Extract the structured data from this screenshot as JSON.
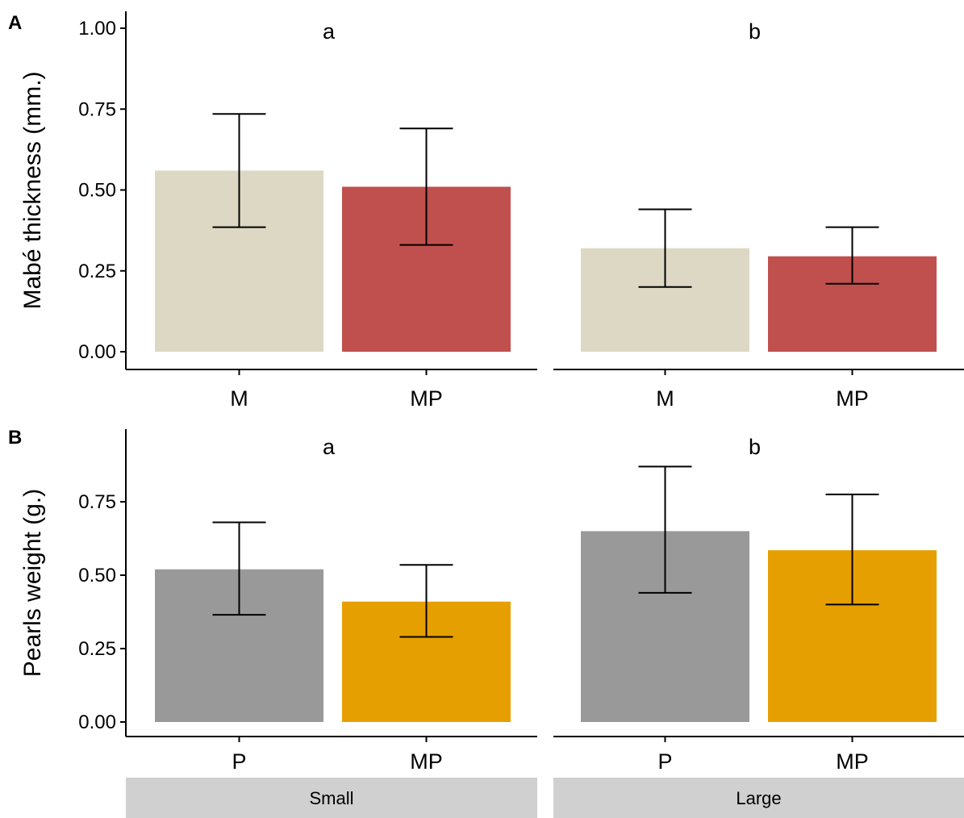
{
  "chart_data": [
    {
      "type": "bar",
      "panel_label": "A",
      "ylabel": "Mabé thickness (mm.)",
      "ylim": [
        0,
        1.0
      ],
      "yticks": [
        "0.00",
        "0.25",
        "0.50",
        "0.75",
        "1.00"
      ],
      "grid": false,
      "facets": [
        {
          "strip": "Small",
          "letter": "a",
          "categories": [
            "M",
            "MP"
          ],
          "values": [
            0.56,
            0.51
          ],
          "err_low": [
            0.385,
            0.33
          ],
          "err_high": [
            0.735,
            0.69
          ],
          "colors": [
            "#ddd8c4",
            "#c0504d"
          ]
        },
        {
          "strip": "Large",
          "letter": "b",
          "categories": [
            "M",
            "MP"
          ],
          "values": [
            0.32,
            0.295
          ],
          "err_low": [
            0.2,
            0.21
          ],
          "err_high": [
            0.44,
            0.385
          ],
          "colors": [
            "#ddd8c4",
            "#c0504d"
          ]
        }
      ]
    },
    {
      "type": "bar",
      "panel_label": "B",
      "ylabel": "Pearls weight (g.)",
      "ylim": [
        0,
        0.95
      ],
      "yticks": [
        "0.00",
        "0.25",
        "0.50",
        "0.75"
      ],
      "grid": false,
      "facets": [
        {
          "strip": "Small",
          "letter": "a",
          "categories": [
            "P",
            "MP"
          ],
          "values": [
            0.52,
            0.41
          ],
          "err_low": [
            0.365,
            0.29
          ],
          "err_high": [
            0.68,
            0.535
          ],
          "colors": [
            "#999999",
            "#e69f00"
          ]
        },
        {
          "strip": "Large",
          "letter": "b",
          "categories": [
            "P",
            "MP"
          ],
          "values": [
            0.65,
            0.585
          ],
          "err_low": [
            0.44,
            0.4
          ],
          "err_high": [
            0.87,
            0.775
          ],
          "colors": [
            "#999999",
            "#e69f00"
          ]
        }
      ]
    }
  ],
  "strip_labels": [
    "Small",
    "Large"
  ],
  "strip_color": "#d0d0d0"
}
